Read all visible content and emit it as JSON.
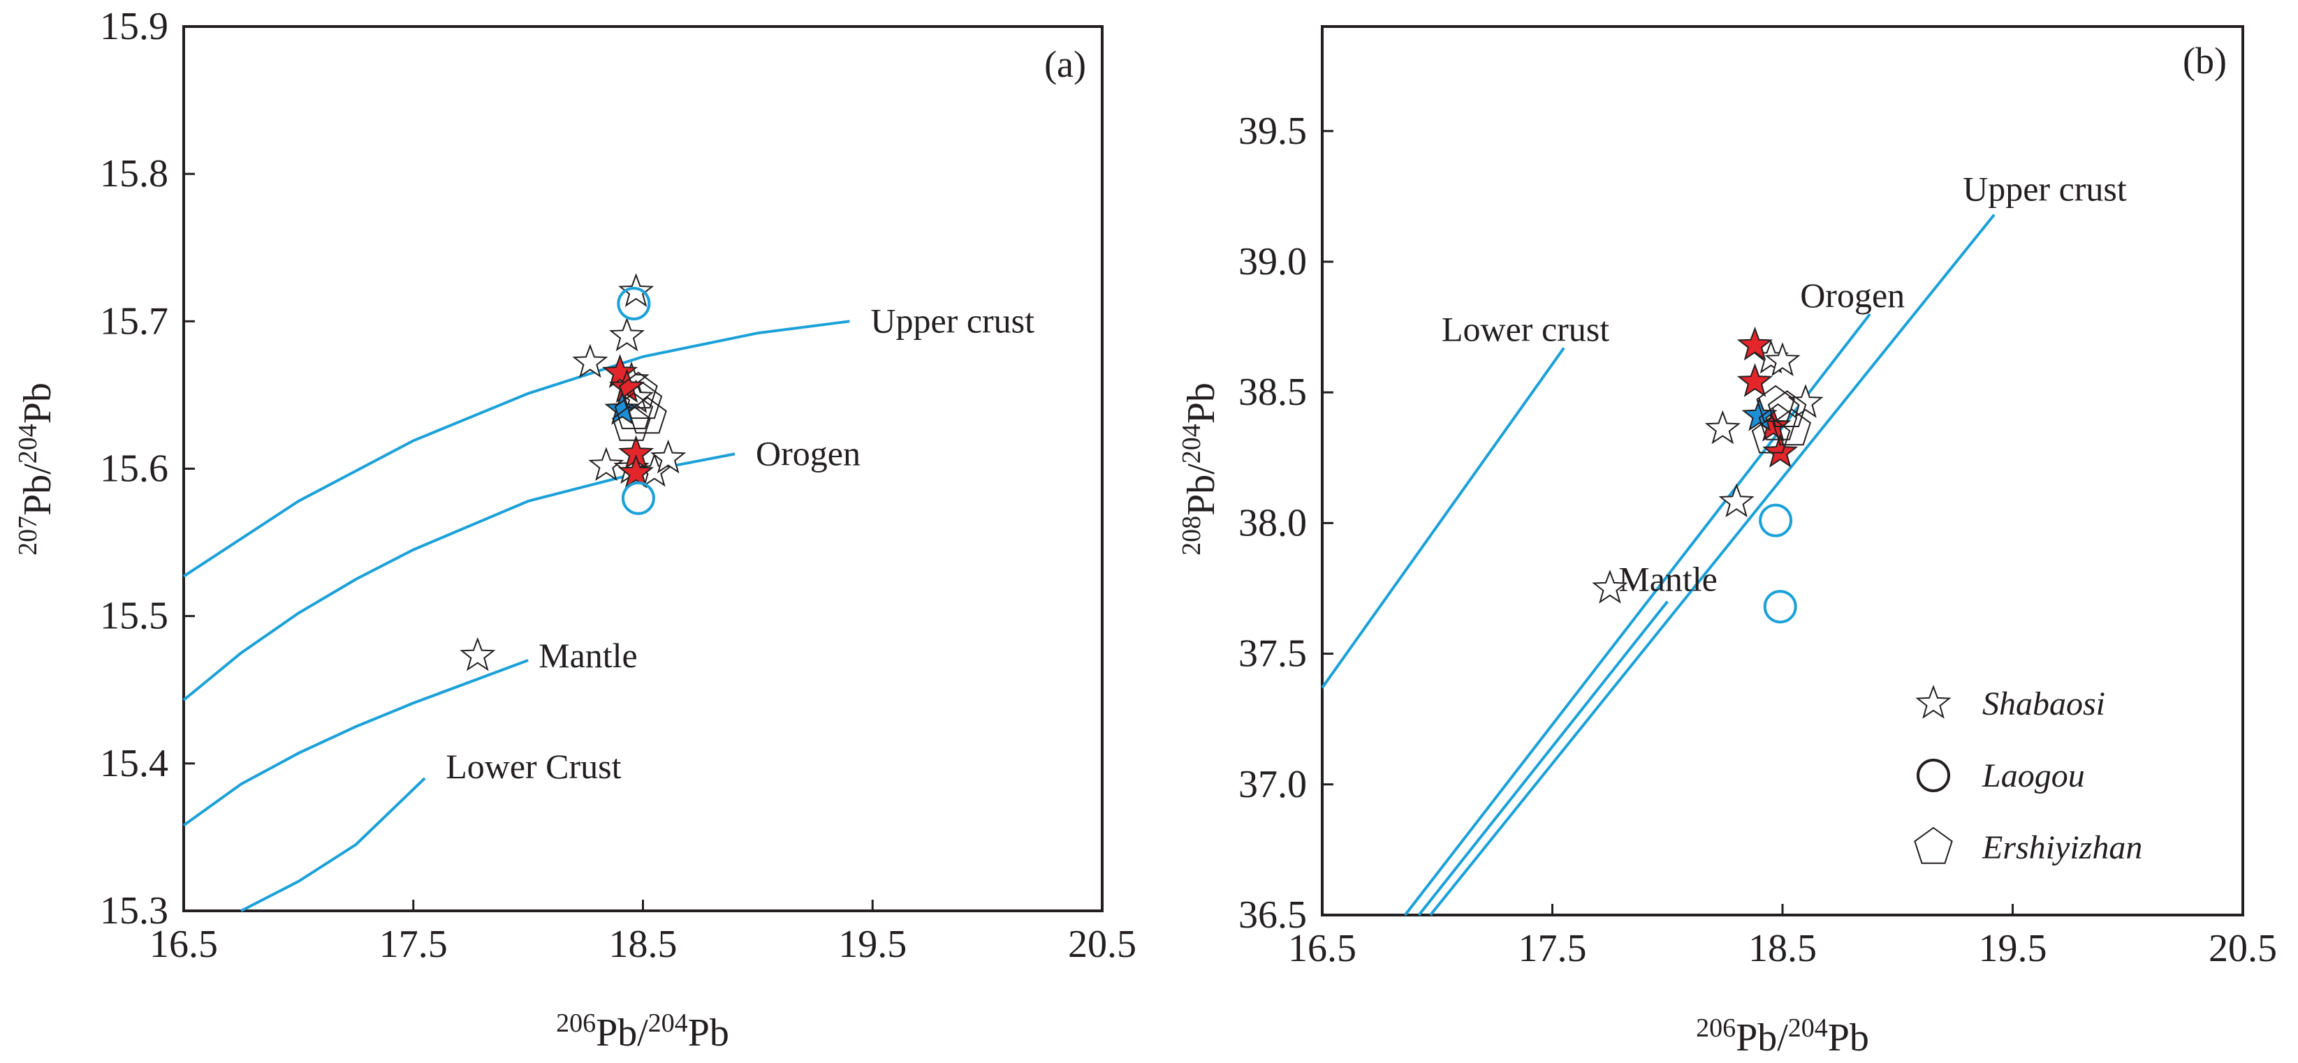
{
  "chart_data": [
    {
      "panel": "a",
      "type": "scatter",
      "panel_label": "(a)",
      "xlabel": {
        "sup": "206",
        "base": "Pb/",
        "sup2": "204",
        "base2": "Pb"
      },
      "ylabel": {
        "sup": "207",
        "base": "Pb/",
        "sup2": "204",
        "base2": "Pb"
      },
      "xlim": [
        16.5,
        20.5
      ],
      "ylim": [
        15.3,
        15.9
      ],
      "x_ticks": [
        "16.5",
        "17.5",
        "18.5",
        "19.5",
        "20.5"
      ],
      "y_ticks": [
        "15.3",
        "15.4",
        "15.5",
        "15.6",
        "15.7",
        "15.8",
        "15.9"
      ],
      "line_color": "#1ba1d8",
      "curves": [
        {
          "name": "Upper crust",
          "label": "Upper crust",
          "points": [
            [
              16.5,
              15.527
            ],
            [
              17.0,
              15.578
            ],
            [
              17.5,
              15.619
            ],
            [
              18.0,
              15.651
            ],
            [
              18.5,
              15.676
            ],
            [
              19.0,
              15.692
            ],
            [
              19.4,
              15.7
            ]
          ]
        },
        {
          "name": "Orogen",
          "label": "Orogen",
          "points": [
            [
              16.5,
              15.443
            ],
            [
              16.75,
              15.475
            ],
            [
              17.0,
              15.502
            ],
            [
              17.25,
              15.525
            ],
            [
              17.5,
              15.545
            ],
            [
              18.0,
              15.578
            ],
            [
              18.5,
              15.598
            ],
            [
              18.9,
              15.61
            ]
          ]
        },
        {
          "name": "Mantle",
          "label": "Mantle",
          "points": [
            [
              16.5,
              15.358
            ],
            [
              16.75,
              15.386
            ],
            [
              17.0,
              15.407
            ],
            [
              17.25,
              15.425
            ],
            [
              17.5,
              15.441
            ],
            [
              18.0,
              15.47
            ]
          ]
        },
        {
          "name": "Lower Crust",
          "label": "Lower Crust",
          "points": [
            [
              16.75,
              15.3
            ],
            [
              17.0,
              15.32
            ],
            [
              17.25,
              15.345
            ],
            [
              17.55,
              15.39
            ]
          ]
        }
      ],
      "series": [
        {
          "name": "Shabaosi",
          "marker": "star-open",
          "points": [
            [
              18.47,
              15.72
            ],
            [
              18.43,
              15.69
            ],
            [
              18.27,
              15.672
            ],
            [
              18.45,
              15.66
            ],
            [
              18.47,
              15.648
            ],
            [
              18.34,
              15.602
            ],
            [
              18.45,
              15.6
            ],
            [
              18.55,
              15.598
            ],
            [
              18.61,
              15.607
            ],
            [
              17.78,
              15.473
            ]
          ]
        },
        {
          "name": "Shabaosi (red)",
          "marker": "star-red",
          "points": [
            [
              18.4,
              15.665
            ],
            [
              18.43,
              15.655
            ],
            [
              18.47,
              15.61
            ],
            [
              18.47,
              15.597
            ]
          ]
        },
        {
          "name": "Shabaosi (blue)",
          "marker": "star-blue",
          "points": [
            [
              18.41,
              15.64
            ]
          ]
        },
        {
          "name": "Laogou",
          "marker": "circle-open",
          "points": [
            [
              18.46,
              15.712
            ],
            [
              18.48,
              15.58
            ]
          ]
        },
        {
          "name": "Ershiyizhan",
          "marker": "pentagon-open",
          "points": [
            [
              18.48,
              15.652
            ],
            [
              18.5,
              15.645
            ],
            [
              18.46,
              15.638
            ],
            [
              18.52,
              15.635
            ],
            [
              18.45,
              15.63
            ]
          ]
        }
      ]
    },
    {
      "panel": "b",
      "type": "scatter",
      "panel_label": "(b)",
      "xlabel": {
        "sup": "206",
        "base": "Pb/",
        "sup2": "204",
        "base2": "Pb"
      },
      "ylabel": {
        "sup": "208",
        "base": "Pb/",
        "sup2": "204",
        "base2": "Pb"
      },
      "xlim": [
        16.5,
        20.5
      ],
      "ylim": [
        36.5,
        39.9
      ],
      "x_ticks": [
        "16.5",
        "17.5",
        "18.5",
        "19.5",
        "20.5"
      ],
      "y_ticks": [
        "36.5",
        "37.0",
        "37.5",
        "38.0",
        "38.5",
        "39.0",
        "39.5"
      ],
      "line_color": "#1ba1d8",
      "curves": [
        {
          "name": "Lower crust",
          "label": "Lower crust",
          "points": [
            [
              16.5,
              37.37
            ],
            [
              17.55,
              38.67
            ]
          ]
        },
        {
          "name": "Orogen",
          "label": "Orogen",
          "points": [
            [
              16.86,
              36.5
            ],
            [
              18.88,
              38.8
            ]
          ]
        },
        {
          "name": "Upper crust",
          "label": "Upper crust",
          "points": [
            [
              16.97,
              36.5
            ],
            [
              19.42,
              39.18
            ]
          ]
        },
        {
          "name": "Mantle",
          "label": "Mantle",
          "points": [
            [
              16.92,
              36.5
            ],
            [
              18.0,
              37.7
            ]
          ]
        }
      ],
      "series": [
        {
          "name": "Shabaosi",
          "marker": "star-open",
          "points": [
            [
              18.45,
              38.63
            ],
            [
              18.5,
              38.62
            ],
            [
              18.24,
              38.36
            ],
            [
              18.6,
              38.46
            ],
            [
              18.3,
              38.08
            ],
            [
              17.75,
              37.75
            ]
          ]
        },
        {
          "name": "Shabaosi (red)",
          "marker": "star-red",
          "points": [
            [
              18.38,
              38.68
            ],
            [
              18.38,
              38.54
            ],
            [
              18.46,
              38.37
            ],
            [
              18.49,
              38.27
            ]
          ]
        },
        {
          "name": "Shabaosi (blue)",
          "marker": "star-blue",
          "points": [
            [
              18.4,
              38.41
            ]
          ]
        },
        {
          "name": "Laogou",
          "marker": "circle-open",
          "points": [
            [
              18.47,
              38.01
            ],
            [
              18.49,
              37.68
            ]
          ]
        },
        {
          "name": "Ershiyizhan",
          "marker": "pentagon-open",
          "points": [
            [
              18.47,
              38.45
            ],
            [
              18.52,
              38.43
            ],
            [
              18.48,
              38.38
            ],
            [
              18.54,
              38.36
            ],
            [
              18.45,
              38.33
            ]
          ]
        }
      ],
      "legend": {
        "position": "bottom-right",
        "items": [
          {
            "label": "Shabaosi",
            "marker": "star-open"
          },
          {
            "label": "Laogou",
            "marker": "circle-open"
          },
          {
            "label": "Ershiyizhan",
            "marker": "pentagon-open"
          }
        ]
      }
    }
  ]
}
